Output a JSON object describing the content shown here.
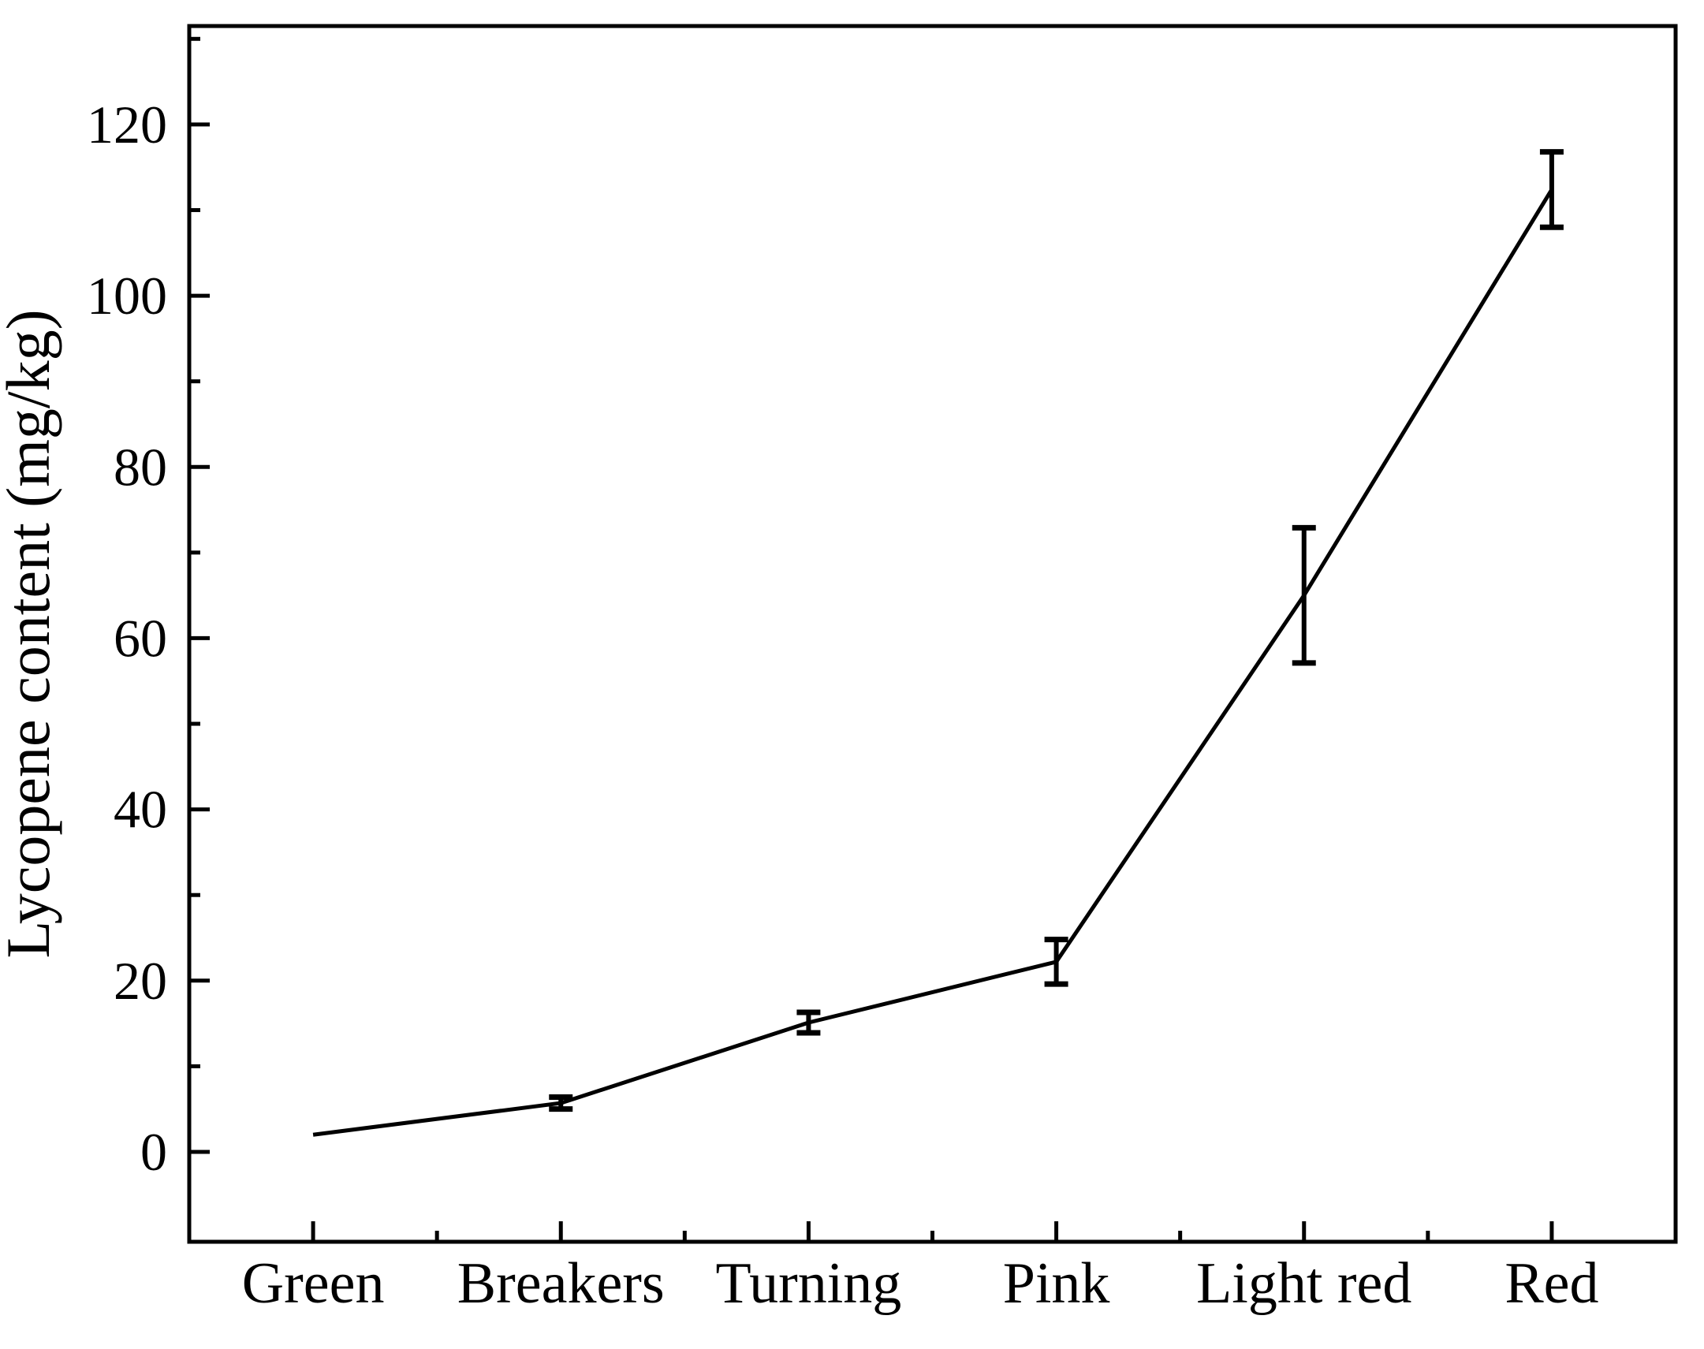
{
  "chart_data": {
    "type": "line",
    "title": "",
    "categories": [
      "Green",
      "Breakers",
      "Turning",
      "Pink",
      "Light red",
      "Red"
    ],
    "series": [
      {
        "name": "Lycopene content",
        "values": [
          2.0,
          5.7,
          15.1,
          22.2,
          65.0,
          112.4
        ],
        "errors": [
          0,
          0.7,
          1.2,
          2.6,
          7.9,
          4.4
        ]
      }
    ],
    "xlabel": "",
    "ylabel": "Lycopene content (mg/kg)",
    "ylim": [
      -10.5,
      131.5
    ],
    "yticks_major": [
      0,
      20,
      40,
      60,
      80,
      100,
      120
    ],
    "yticks_minor": [
      10,
      30,
      50,
      70,
      90,
      110,
      130
    ],
    "x_minor_between_categories": true,
    "grid": false,
    "legend_position": "none",
    "marker": "none",
    "line_color": "#000000",
    "axis_color": "#000000",
    "background_color": "#ffffff"
  }
}
